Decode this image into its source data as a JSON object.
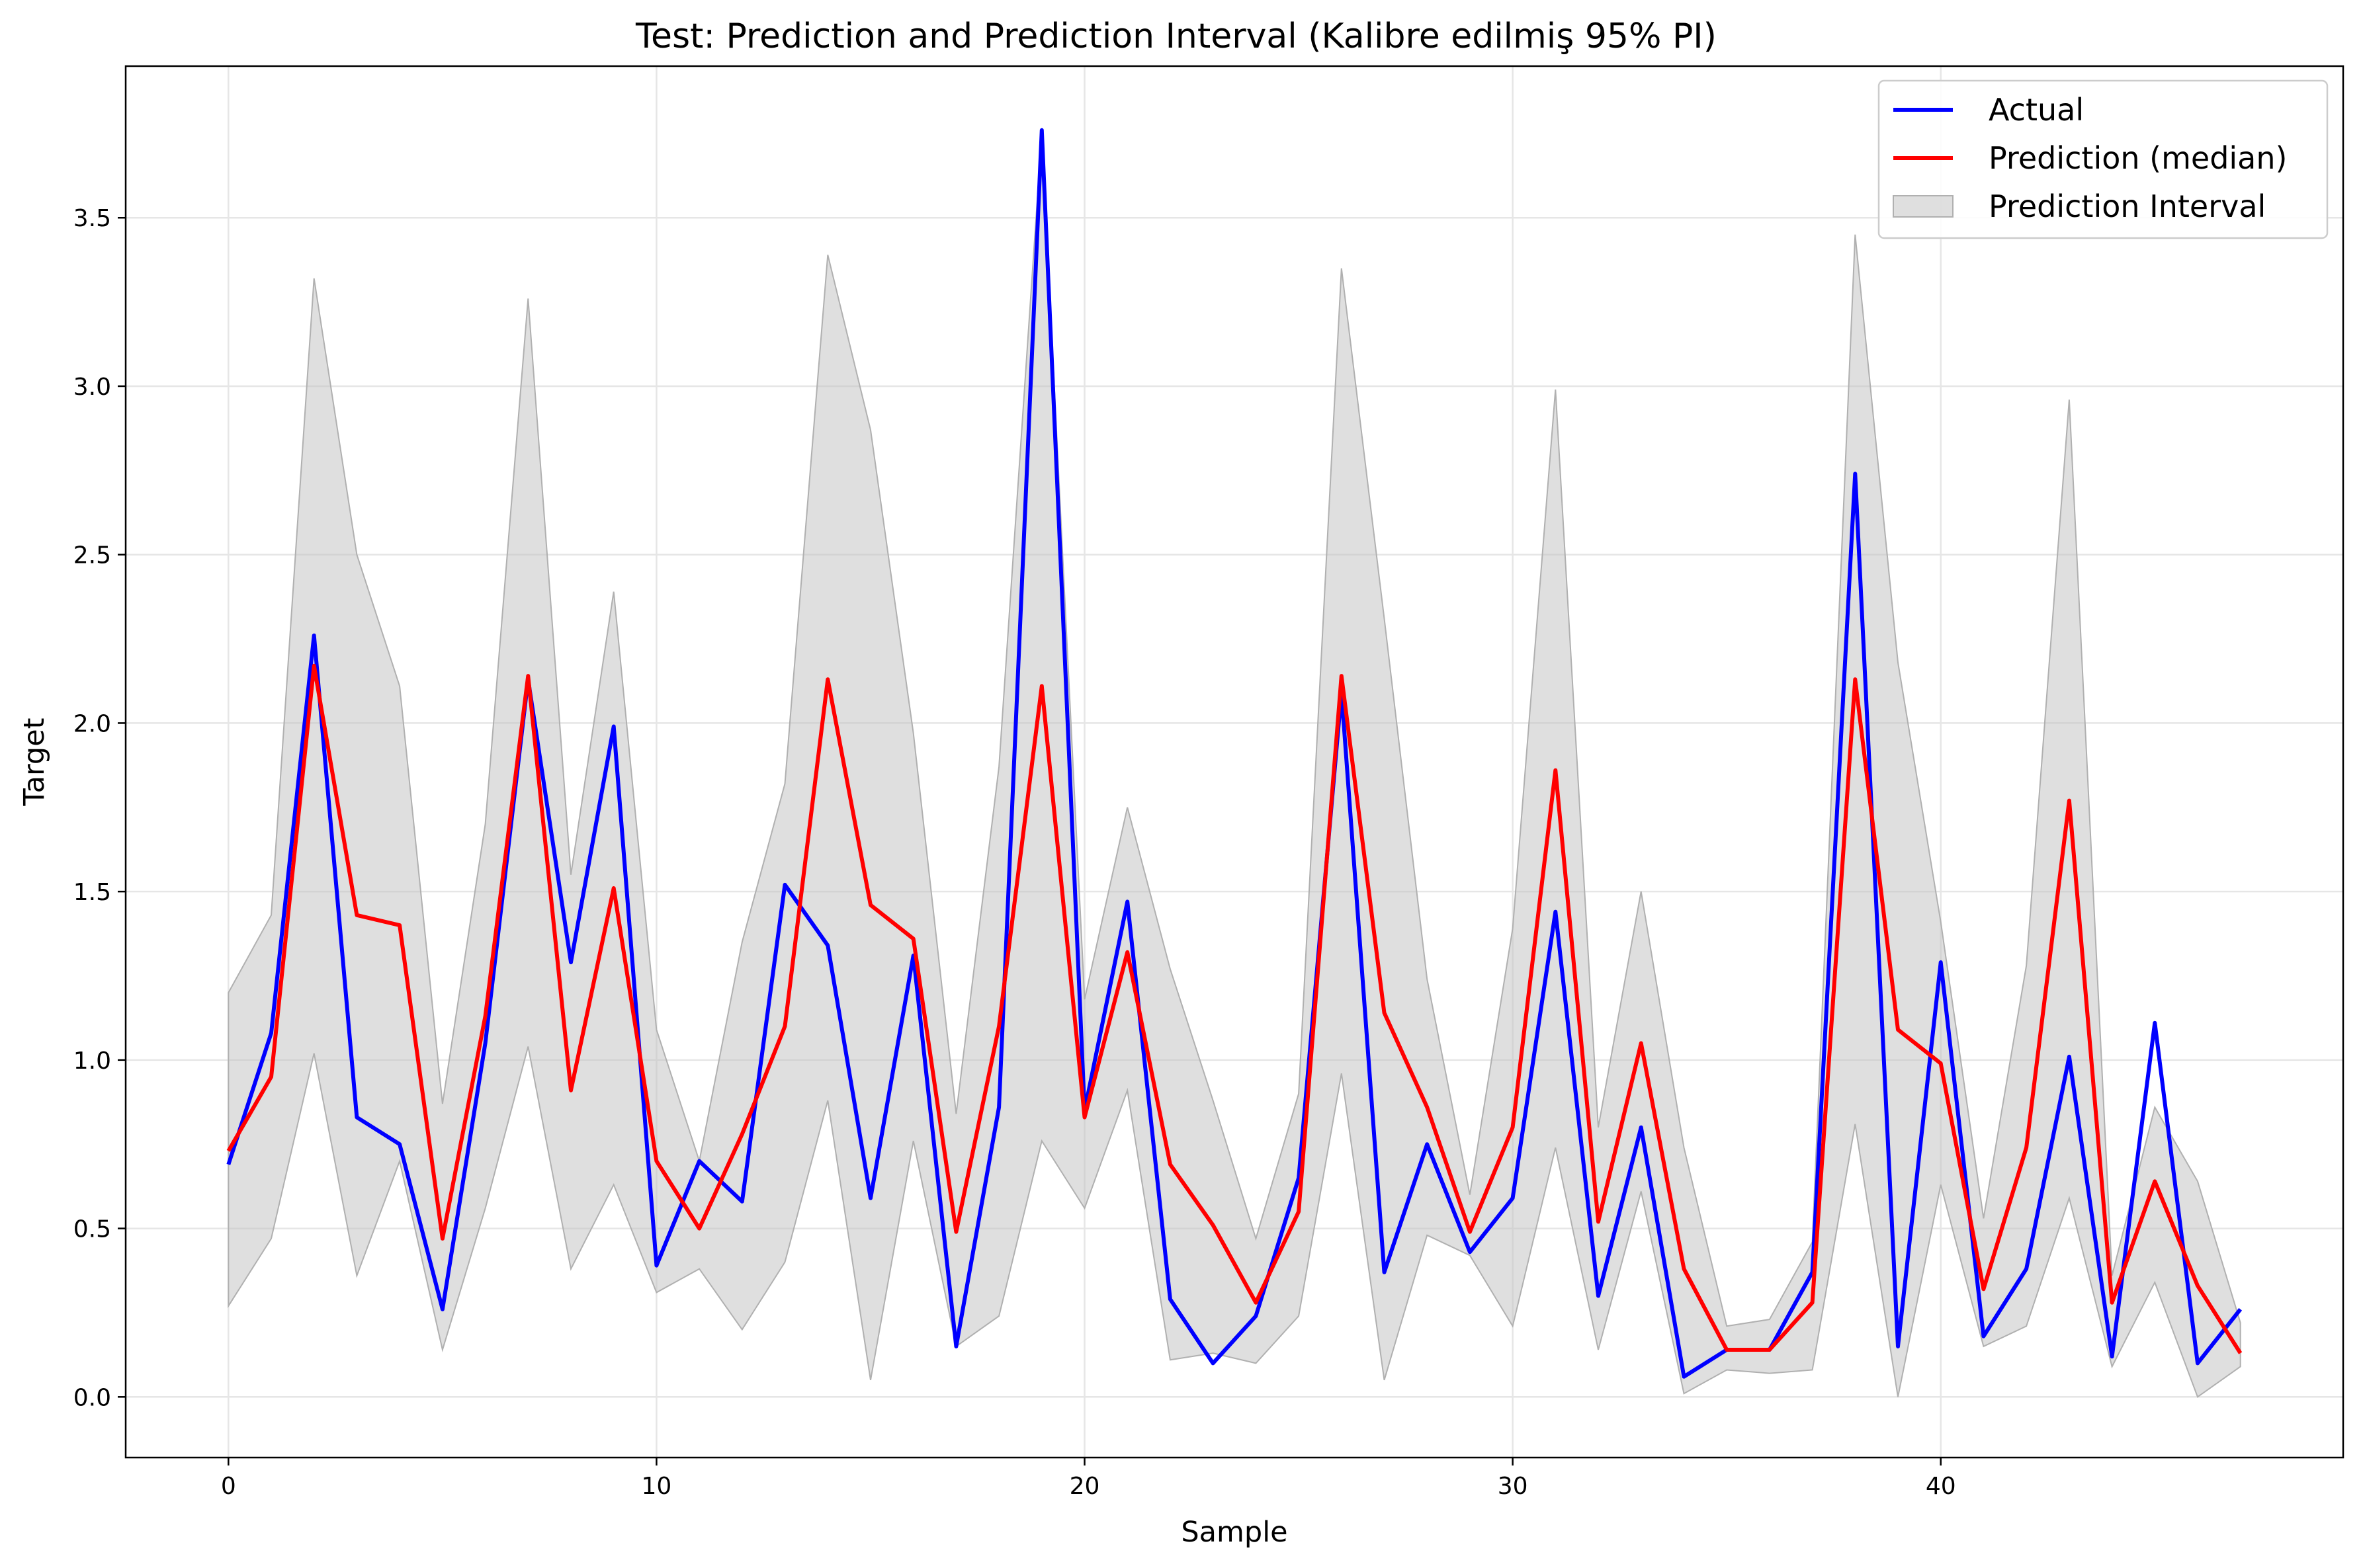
{
  "chart_data": {
    "type": "line",
    "title": "Test: Prediction and Prediction Interval (Kalibre edilmiş 95% PI)",
    "xlabel": "Sample",
    "ylabel": "Target",
    "xlim": [
      -2.4,
      49.4
    ],
    "ylim": [
      -0.18,
      3.95
    ],
    "xticks": [
      "0",
      "10",
      "20",
      "30",
      "40"
    ],
    "yticks": [
      "0.0",
      "0.5",
      "1.0",
      "1.5",
      "2.0",
      "2.5",
      "3.0",
      "3.5"
    ],
    "grid": true,
    "legend_position": "upper right",
    "x": [
      0,
      1,
      2,
      3,
      4,
      5,
      6,
      7,
      8,
      9,
      10,
      11,
      12,
      13,
      14,
      15,
      16,
      17,
      18,
      19,
      20,
      21,
      22,
      23,
      24,
      25,
      26,
      27,
      28,
      29,
      30,
      31,
      32,
      33,
      34,
      35,
      36,
      37,
      38,
      39,
      40,
      41,
      42,
      43,
      44,
      45,
      46,
      47
    ],
    "series": [
      {
        "name": "Actual",
        "color": "#0000ff",
        "values": [
          0.69,
          1.08,
          2.26,
          0.83,
          0.75,
          0.26,
          1.05,
          2.13,
          1.29,
          1.99,
          0.39,
          0.7,
          0.58,
          1.52,
          1.34,
          0.59,
          1.31,
          0.15,
          0.86,
          3.76,
          0.85,
          1.47,
          0.29,
          0.1,
          0.24,
          0.65,
          2.09,
          0.37,
          0.75,
          0.43,
          0.59,
          1.44,
          0.3,
          0.8,
          0.06,
          0.14,
          0.14,
          0.37,
          2.74,
          0.15,
          1.29,
          0.18,
          0.38,
          1.01,
          0.12,
          1.11,
          0.1,
          0.26
        ]
      },
      {
        "name": "Prediction (median)",
        "color": "#ff0000",
        "values": [
          0.73,
          0.95,
          2.17,
          1.43,
          1.4,
          0.47,
          1.13,
          2.14,
          0.91,
          1.51,
          0.7,
          0.5,
          0.78,
          1.1,
          2.13,
          1.46,
          1.36,
          0.49,
          1.1,
          2.11,
          0.83,
          1.32,
          0.69,
          0.51,
          0.28,
          0.55,
          2.14,
          1.14,
          0.86,
          0.49,
          0.8,
          1.86,
          0.52,
          1.05,
          0.38,
          0.14,
          0.14,
          0.28,
          2.13,
          1.09,
          0.99,
          0.32,
          0.74,
          1.77,
          0.28,
          0.64,
          0.33,
          0.13
        ]
      }
    ],
    "interval": {
      "name": "Prediction Interval",
      "color": "#bfbfbf",
      "lower": [
        0.27,
        0.47,
        1.02,
        0.36,
        0.7,
        0.14,
        0.56,
        1.04,
        0.38,
        0.63,
        0.31,
        0.38,
        0.2,
        0.4,
        0.88,
        0.05,
        0.76,
        0.15,
        0.24,
        0.76,
        0.56,
        0.91,
        0.11,
        0.13,
        0.1,
        0.24,
        0.96,
        0.05,
        0.48,
        0.42,
        0.21,
        0.74,
        0.14,
        0.61,
        0.01,
        0.08,
        0.07,
        0.08,
        0.81,
        0.0,
        0.63,
        0.15,
        0.21,
        0.59,
        0.09,
        0.34,
        0.0,
        0.09
      ],
      "upper": [
        1.2,
        1.43,
        3.32,
        2.5,
        2.11,
        0.87,
        1.7,
        3.26,
        1.55,
        2.39,
        1.09,
        0.7,
        1.35,
        1.82,
        3.39,
        2.87,
        1.97,
        0.84,
        1.87,
        3.75,
        1.18,
        1.75,
        1.27,
        0.88,
        0.47,
        0.9,
        3.35,
        2.31,
        1.24,
        0.6,
        1.39,
        2.99,
        0.8,
        1.5,
        0.74,
        0.21,
        0.23,
        0.46,
        3.45,
        2.18,
        1.41,
        0.53,
        1.28,
        2.96,
        0.36,
        0.86,
        0.64,
        0.22
      ]
    }
  }
}
